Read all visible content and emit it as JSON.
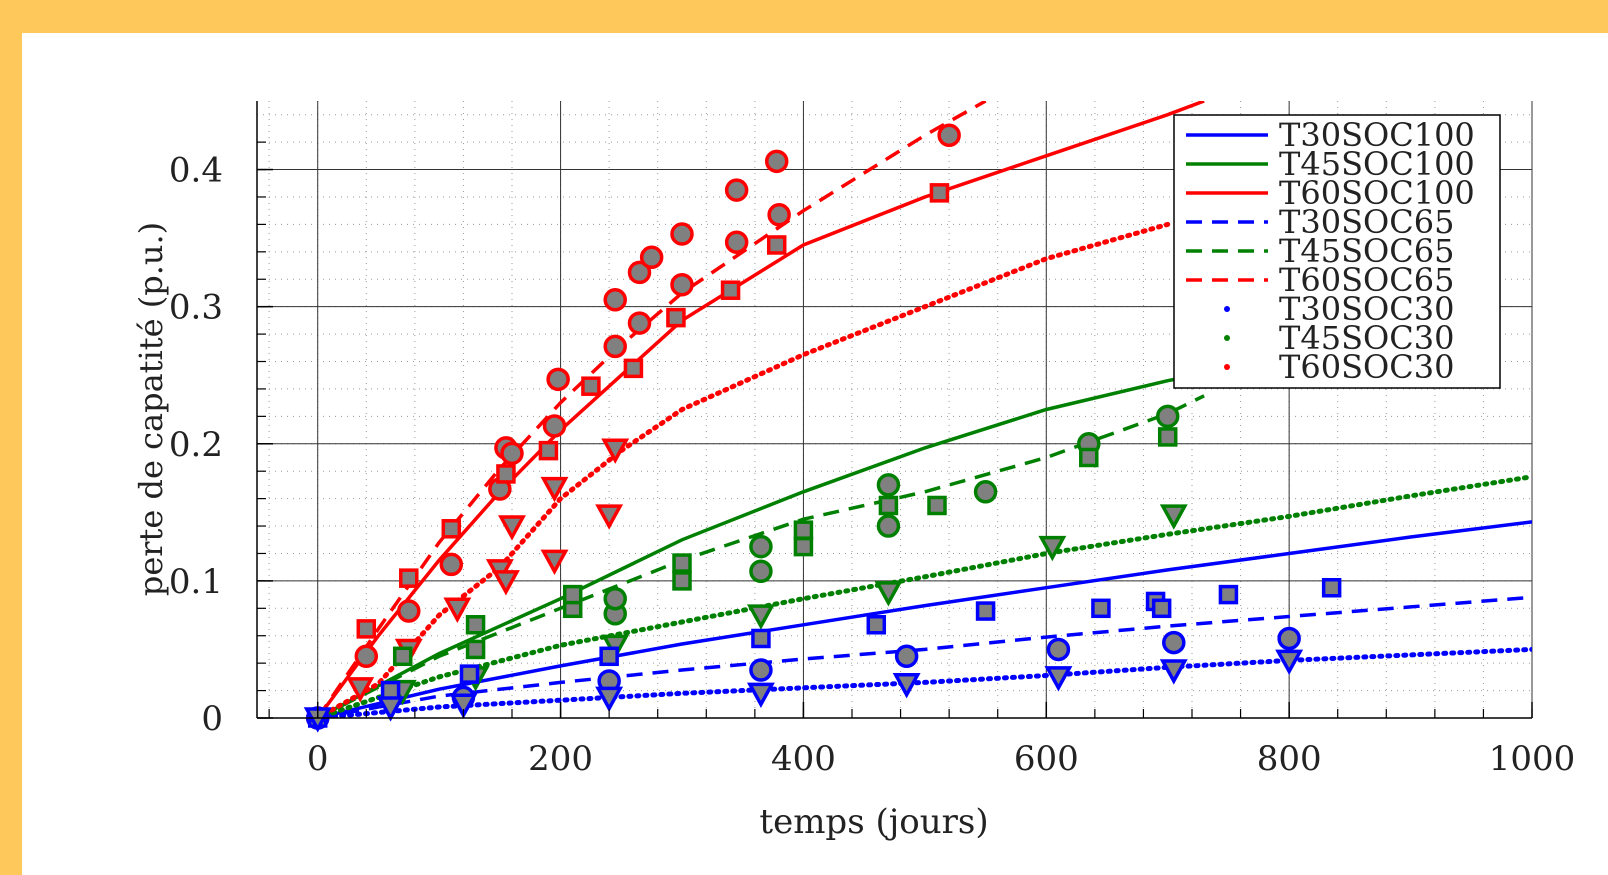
{
  "chart_data": {
    "type": "scatter",
    "title": "",
    "xlabel": "temps (jours)",
    "ylabel": "perte de capatité (p.u.)",
    "xlim": [
      -50,
      1000
    ],
    "ylim": [
      0,
      0.45
    ],
    "xticks": [
      0,
      200,
      400,
      600,
      800,
      1000
    ],
    "yticks": [
      0,
      0.1,
      0.2,
      0.3,
      0.4
    ],
    "xtick_labels": [
      "0",
      "200",
      "400",
      "600",
      "800",
      "1000"
    ],
    "ytick_labels": [
      "0",
      "0.1",
      "0.2",
      "0.3",
      "0.4"
    ],
    "grid": true,
    "legend_position": "top-right",
    "colors": {
      "T30": "#0000ff",
      "T45": "#008000",
      "T60": "#ff0000",
      "marker_fill": "#808080"
    },
    "model_series": [
      {
        "name": "T30SOC100",
        "color": "#0000ff",
        "style": "solid",
        "x": [
          0,
          100,
          200,
          300,
          400,
          500,
          600,
          700,
          800,
          900,
          1000
        ],
        "y": [
          0,
          0.021,
          0.038,
          0.054,
          0.068,
          0.082,
          0.095,
          0.108,
          0.12,
          0.132,
          0.143
        ]
      },
      {
        "name": "T45SOC100",
        "color": "#008000",
        "style": "solid",
        "x": [
          0,
          100,
          200,
          300,
          400,
          500,
          600,
          700,
          723
        ],
        "y": [
          0,
          0.047,
          0.087,
          0.13,
          0.165,
          0.197,
          0.225,
          0.246,
          0.25
        ]
      },
      {
        "name": "T60SOC100",
        "color": "#ff0000",
        "style": "solid",
        "x": [
          0,
          50,
          100,
          150,
          200,
          250,
          300,
          400,
          500,
          600,
          700,
          730
        ],
        "y": [
          0,
          0.06,
          0.115,
          0.165,
          0.21,
          0.25,
          0.29,
          0.345,
          0.38,
          0.41,
          0.44,
          0.45
        ]
      },
      {
        "name": "T30SOC65",
        "color": "#0000ff",
        "style": "dashed",
        "x": [
          0,
          100,
          200,
          300,
          400,
          500,
          600,
          700,
          800,
          900,
          1000
        ],
        "y": [
          0,
          0.016,
          0.026,
          0.035,
          0.043,
          0.05,
          0.059,
          0.067,
          0.074,
          0.081,
          0.088
        ]
      },
      {
        "name": "T45SOC65",
        "color": "#008000",
        "style": "dashed",
        "x": [
          0,
          100,
          200,
          300,
          400,
          500,
          600,
          700,
          730
        ],
        "y": [
          0,
          0.045,
          0.08,
          0.115,
          0.145,
          0.165,
          0.19,
          0.222,
          0.235
        ]
      },
      {
        "name": "T60SOC65",
        "color": "#ff0000",
        "style": "dashed",
        "x": [
          0,
          50,
          100,
          150,
          200,
          250,
          300,
          400,
          500,
          550
        ],
        "y": [
          0,
          0.065,
          0.128,
          0.182,
          0.23,
          0.272,
          0.31,
          0.37,
          0.425,
          0.45
        ]
      },
      {
        "name": "T30SOC30",
        "color": "#0000ff",
        "style": "dotted",
        "x": [
          0,
          100,
          200,
          300,
          400,
          500,
          600,
          700,
          800,
          900,
          1000
        ],
        "y": [
          0,
          0.008,
          0.013,
          0.018,
          0.022,
          0.026,
          0.031,
          0.037,
          0.042,
          0.046,
          0.05
        ]
      },
      {
        "name": "T45SOC30",
        "color": "#008000",
        "style": "dotted",
        "x": [
          0,
          100,
          200,
          300,
          400,
          500,
          600,
          700,
          800,
          900,
          1000
        ],
        "y": [
          0,
          0.03,
          0.053,
          0.07,
          0.087,
          0.103,
          0.12,
          0.134,
          0.147,
          0.162,
          0.176
        ]
      },
      {
        "name": "T60SOC30",
        "color": "#ff0000",
        "style": "dotted",
        "x": [
          0,
          50,
          100,
          150,
          200,
          250,
          300,
          400,
          500,
          600,
          700
        ],
        "y": [
          0,
          0.025,
          0.075,
          0.11,
          0.16,
          0.195,
          0.225,
          0.265,
          0.3,
          0.335,
          0.36
        ]
      }
    ],
    "measured_points": [
      {
        "color": "#ff0000",
        "marker": "circle",
        "x": [
          0,
          40,
          75,
          110,
          150,
          155,
          160,
          195,
          198,
          245,
          245,
          265,
          265,
          275,
          300,
          300,
          345,
          345,
          378,
          380,
          520
        ],
        "y": [
          0,
          0.045,
          0.078,
          0.112,
          0.167,
          0.197,
          0.193,
          0.213,
          0.247,
          0.271,
          0.305,
          0.288,
          0.325,
          0.336,
          0.316,
          0.353,
          0.347,
          0.385,
          0.406,
          0.367,
          0.425
        ]
      },
      {
        "color": "#ff0000",
        "marker": "square",
        "x": [
          40,
          75,
          110,
          155,
          190,
          225,
          260,
          295,
          340,
          378,
          512
        ],
        "y": [
          0.065,
          0.102,
          0.138,
          0.178,
          0.195,
          0.242,
          0.255,
          0.292,
          0.312,
          0.345,
          0.383
        ]
      },
      {
        "color": "#ff0000",
        "marker": "triangle",
        "x": [
          35,
          75,
          115,
          150,
          155,
          160,
          195,
          195,
          240,
          245
        ],
        "y": [
          0.022,
          0.05,
          0.08,
          0.108,
          0.1,
          0.14,
          0.115,
          0.168,
          0.148,
          0.196
        ]
      },
      {
        "color": "#008000",
        "marker": "circle",
        "x": [
          245,
          245,
          365,
          365,
          470,
          470,
          550,
          635,
          700
        ],
        "y": [
          0.076,
          0.087,
          0.107,
          0.125,
          0.14,
          0.17,
          0.165,
          0.2,
          0.22
        ]
      },
      {
        "color": "#008000",
        "marker": "square",
        "x": [
          70,
          130,
          130,
          210,
          210,
          300,
          300,
          400,
          400,
          470,
          510,
          635,
          700
        ],
        "y": [
          0.045,
          0.05,
          0.068,
          0.08,
          0.09,
          0.1,
          0.113,
          0.125,
          0.137,
          0.155,
          0.155,
          0.19,
          0.205
        ]
      },
      {
        "color": "#008000",
        "marker": "triangle",
        "x": [
          70,
          130,
          245,
          365,
          470,
          605,
          705
        ],
        "y": [
          0.02,
          0.03,
          0.053,
          0.075,
          0.092,
          0.125,
          0.148
        ]
      },
      {
        "color": "#0000ff",
        "marker": "circle",
        "x": [
          0,
          120,
          240,
          365,
          485,
          610,
          705,
          800
        ],
        "y": [
          0,
          0.015,
          0.027,
          0.035,
          0.045,
          0.05,
          0.055,
          0.058
        ]
      },
      {
        "color": "#0000ff",
        "marker": "square",
        "x": [
          0,
          60,
          125,
          240,
          365,
          460,
          550,
          645,
          690,
          695,
          750,
          835
        ],
        "y": [
          0,
          0.02,
          0.032,
          0.045,
          0.058,
          0.068,
          0.078,
          0.08,
          0.085,
          0.08,
          0.09,
          0.095
        ]
      },
      {
        "color": "#0000ff",
        "marker": "triangle",
        "x": [
          0,
          60,
          120,
          240,
          365,
          485,
          610,
          705,
          800
        ],
        "y": [
          0,
          0.008,
          0.01,
          0.015,
          0.018,
          0.025,
          0.03,
          0.035,
          0.042
        ]
      }
    ]
  }
}
